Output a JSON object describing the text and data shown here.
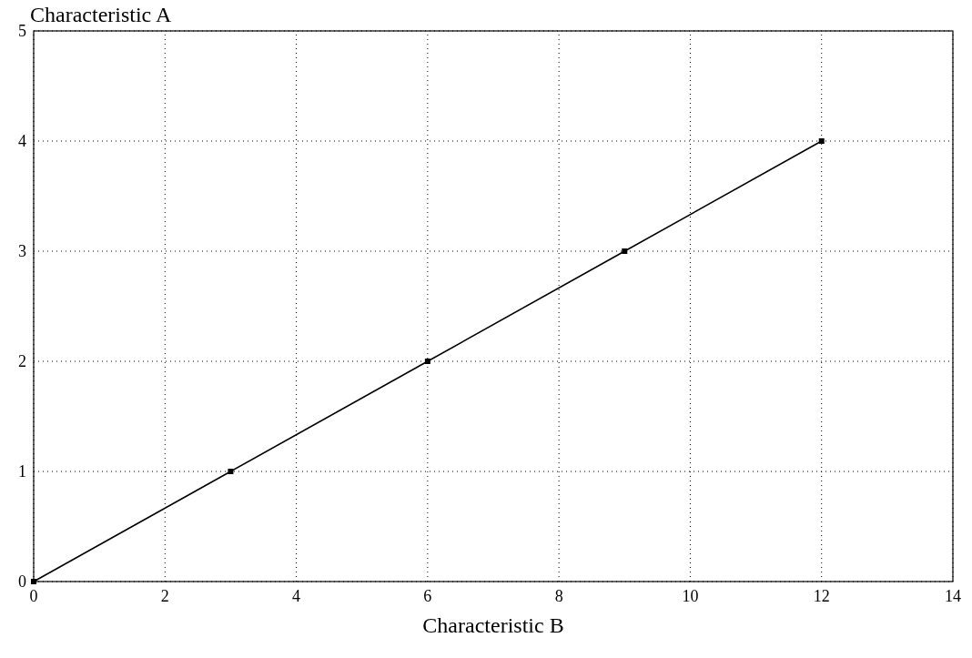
{
  "chart_data": {
    "type": "line",
    "xlabel": "Characteristic B",
    "ylabel": "Characteristic A",
    "x": [
      0,
      3,
      6,
      9,
      12
    ],
    "series": [
      {
        "color": "#000000",
        "values": [
          0,
          1,
          2,
          3,
          4
        ]
      }
    ],
    "xlim": [
      0,
      14
    ],
    "xticks": [
      0,
      2,
      4,
      6,
      8,
      10,
      12,
      14
    ],
    "ylim": [
      0,
      5
    ],
    "yticks": [
      0,
      1,
      2,
      3,
      4,
      5
    ],
    "grid": true,
    "marker": "square",
    "line_style": "solid"
  }
}
